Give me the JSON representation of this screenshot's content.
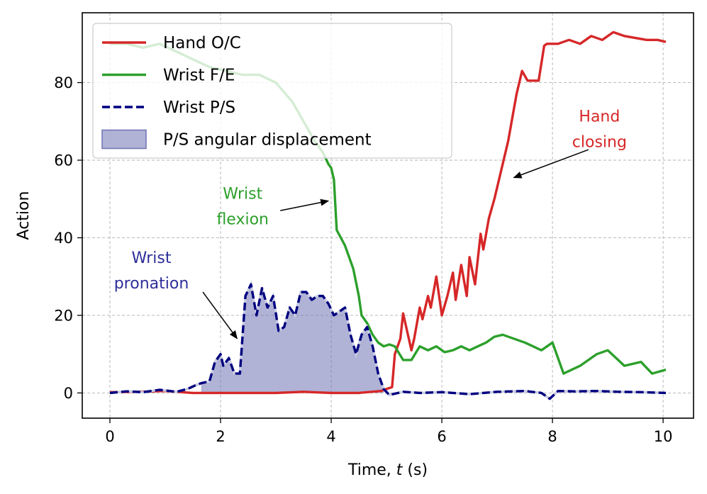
{
  "chart_data": {
    "type": "line",
    "title": "",
    "xlabel_prefix": "Time, ",
    "xlabel_var": "t",
    "xlabel_suffix": " (s)",
    "ylabel": "Action",
    "xlim": [
      -0.5,
      10.55
    ],
    "ylim": [
      -6.5,
      98
    ],
    "xticks": [
      0,
      2,
      4,
      6,
      8,
      10
    ],
    "yticks": [
      0,
      20,
      40,
      60,
      80
    ],
    "grid": true,
    "legend_position": "top-left",
    "colors": {
      "hand": "#d62728",
      "wrist_fe": "#2ca02c",
      "wrist_ps": "#000080",
      "fill": "#6f73b5"
    },
    "series": [
      {
        "name": "Hand O/C",
        "style": "solid",
        "x": [
          0,
          0.5,
          1.0,
          1.5,
          2.0,
          2.5,
          3.0,
          3.5,
          4.0,
          4.5,
          4.9,
          5.0,
          5.1,
          5.15,
          5.25,
          5.3,
          5.45,
          5.5,
          5.6,
          5.65,
          5.75,
          5.8,
          5.9,
          6.0,
          6.1,
          6.2,
          6.25,
          6.35,
          6.45,
          6.5,
          6.6,
          6.7,
          6.75,
          6.85,
          6.95,
          7.05,
          7.2,
          7.35,
          7.45,
          7.55,
          7.65,
          7.75,
          7.85,
          7.9,
          8.1,
          8.3,
          8.5,
          8.7,
          8.9,
          9.1,
          9.3,
          9.5,
          9.7,
          9.9,
          10.05
        ],
        "values": [
          0.2,
          0.3,
          0.5,
          0,
          0,
          0,
          0,
          0.3,
          0,
          0,
          0.5,
          1,
          1.5,
          10,
          14,
          20.5,
          11,
          14,
          22,
          19,
          25,
          22,
          30,
          20,
          25,
          31,
          24,
          33,
          25,
          35,
          28,
          41,
          37,
          45,
          50,
          56,
          65,
          77,
          83,
          80.5,
          80.5,
          80.5,
          89.5,
          90,
          90,
          91,
          90,
          92,
          91,
          93,
          92,
          91.5,
          91,
          91,
          90.5
        ]
      },
      {
        "name": "Wrist F/E",
        "style": "solid",
        "x": [
          0,
          0.3,
          0.6,
          0.9,
          1.2,
          1.5,
          1.8,
          2.1,
          2.4,
          2.7,
          3.0,
          3.3,
          3.5,
          3.7,
          3.85,
          3.95,
          4.0,
          4.05,
          4.1,
          4.25,
          4.4,
          4.5,
          4.55,
          4.65,
          4.75,
          4.85,
          4.95,
          5.05,
          5.15,
          5.3,
          5.45,
          5.6,
          5.75,
          5.9,
          6.05,
          6.2,
          6.35,
          6.5,
          6.65,
          6.8,
          6.95,
          7.1,
          7.3,
          7.5,
          7.65,
          7.8,
          8.0,
          8.2,
          8.5,
          8.8,
          9.0,
          9.3,
          9.6,
          9.8,
          10.05
        ],
        "values": [
          90,
          90,
          89,
          90,
          88,
          86,
          84,
          83,
          82,
          82,
          80,
          75,
          70,
          65,
          62,
          59,
          58,
          55,
          42,
          38,
          32,
          25,
          20,
          18,
          15,
          13,
          12,
          12.5,
          12,
          8.5,
          8.5,
          12,
          11,
          12,
          10.5,
          11,
          12,
          11,
          12,
          13,
          14.5,
          15,
          14,
          13,
          12,
          11,
          13,
          5,
          7,
          10,
          11,
          7,
          8,
          5,
          6
        ]
      },
      {
        "name": "Wrist P/S",
        "style": "dashed",
        "x": [
          0,
          0.3,
          0.6,
          0.9,
          1.2,
          1.4,
          1.55,
          1.65,
          1.8,
          1.9,
          2.0,
          2.05,
          2.15,
          2.25,
          2.35,
          2.45,
          2.55,
          2.65,
          2.75,
          2.85,
          2.95,
          3.05,
          3.15,
          3.25,
          3.35,
          3.45,
          3.55,
          3.65,
          3.75,
          3.85,
          3.95,
          4.05,
          4.15,
          4.25,
          4.35,
          4.45,
          4.55,
          4.65,
          4.75,
          4.85,
          4.95,
          5.05,
          5.3,
          5.6,
          6.0,
          6.5,
          7.0,
          7.5,
          7.8,
          7.95,
          8.1,
          8.4,
          8.8,
          9.2,
          9.6,
          10.05
        ],
        "values": [
          0,
          0.4,
          0.2,
          0.8,
          0.3,
          1,
          2,
          2.5,
          3,
          8,
          10,
          7,
          9,
          5,
          5,
          25,
          28,
          20,
          27,
          22,
          25,
          16,
          17,
          22,
          20,
          26,
          26,
          24,
          25,
          25,
          23,
          20,
          21,
          22,
          15,
          10,
          15,
          17,
          12,
          5,
          1,
          -0.5,
          0.3,
          0,
          0.2,
          -0.3,
          0.3,
          0.5,
          0,
          -1.5,
          0.5,
          0.4,
          0.5,
          0.3,
          0.2,
          0
        ]
      }
    ],
    "fill": {
      "name": "P/S angular displacement",
      "of_series": "Wrist P/S",
      "baseline": 0,
      "x_range": [
        1.6,
        5.0
      ]
    },
    "legend": [
      {
        "label": "Hand O/C",
        "kind": "line-solid",
        "color": "#d62728"
      },
      {
        "label": "Wrist F/E",
        "kind": "line-solid",
        "color": "#2ca02c"
      },
      {
        "label": "Wrist P/S",
        "kind": "line-dashed",
        "color": "#000080"
      },
      {
        "label": "P/S angular displacement",
        "kind": "patch",
        "color": "#6f73b5"
      }
    ],
    "annotations": [
      {
        "lines": [
          "Wrist",
          "pronation"
        ],
        "color": "#2e2e9a",
        "text_x": 0.75,
        "text_y": 33.5,
        "arrow_from": [
          1.68,
          26
        ],
        "arrow_to": [
          2.3,
          14
        ]
      },
      {
        "lines": [
          "Wrist",
          "flexion"
        ],
        "color": "#2ca02c",
        "text_x": 2.4,
        "text_y": 50,
        "arrow_from": [
          3.08,
          47
        ],
        "arrow_to": [
          3.95,
          49.5
        ]
      },
      {
        "lines": [
          "Hand",
          "closing"
        ],
        "color": "#d62728",
        "text_x": 8.85,
        "text_y": 70,
        "arrow_from": [
          8.65,
          62.7
        ],
        "arrow_to": [
          7.3,
          55.5
        ]
      }
    ]
  }
}
